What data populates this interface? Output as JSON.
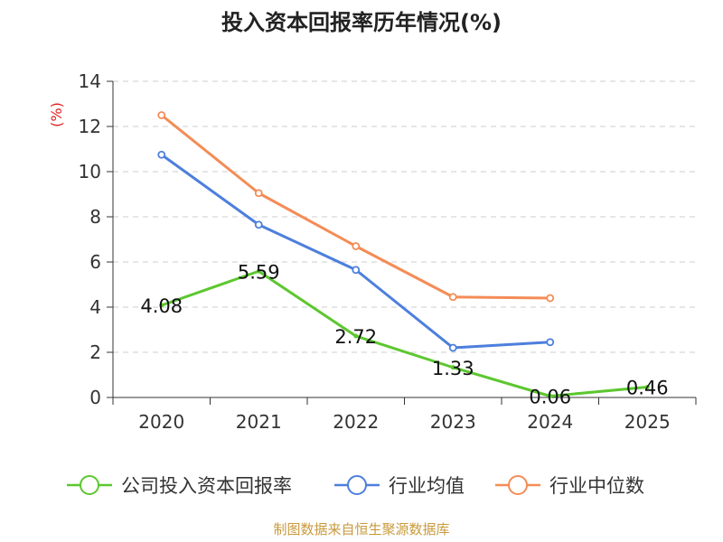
{
  "colors": {
    "company": "#5cc72f",
    "industry_avg": "#4d7fdd",
    "industry_median": "#f48c56",
    "ylabel": "#e02020",
    "source": "#c89a3c"
  },
  "chart_data": {
    "type": "line",
    "title": "投入资本回报率历年情况(%)",
    "xlabel": "",
    "ylabel": "(%)",
    "categories": [
      "2020",
      "2021",
      "2022",
      "2023",
      "2024",
      "2025"
    ],
    "ylim": [
      0,
      14
    ],
    "yticks": [
      "0",
      "2",
      "4",
      "6",
      "8",
      "10",
      "12",
      "14"
    ],
    "grid": true,
    "legend_position": "bottom",
    "series": [
      {
        "key": "company",
        "name": "公司投入资本回报率",
        "values": [
          4.08,
          5.59,
          2.72,
          1.33,
          0.06,
          0.46
        ],
        "labels": [
          "4.08",
          "5.59",
          "2.72",
          "1.33",
          "0.06",
          "0.46"
        ]
      },
      {
        "key": "industry_avg",
        "name": "行业均值",
        "values": [
          10.75,
          7.65,
          5.65,
          2.2,
          2.45,
          null
        ]
      },
      {
        "key": "industry_median",
        "name": "行业中位数",
        "values": [
          12.5,
          9.05,
          6.7,
          4.45,
          4.4,
          null
        ]
      }
    ],
    "source": "制图数据来自恒生聚源数据库"
  }
}
